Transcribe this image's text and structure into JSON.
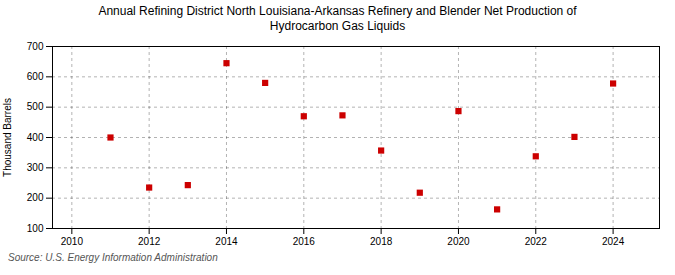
{
  "chart_data": {
    "type": "scatter",
    "title": "Annual Refining District North Louisiana-Arkansas Refinery and Blender Net Production of\nHydrocarbon Gas Liquids",
    "ylabel": "Thousand Barrels",
    "source": "Source: U.S. Energy Information Administration",
    "x": [
      2011,
      2012,
      2013,
      2014,
      2015,
      2016,
      2017,
      2018,
      2019,
      2020,
      2021,
      2022,
      2023,
      2024
    ],
    "values": [
      400,
      235,
      243,
      645,
      580,
      470,
      473,
      357,
      218,
      487,
      163,
      338,
      402,
      578
    ],
    "color": "#CC0000",
    "marker": "square",
    "xlim": [
      2009.5,
      2025.2
    ],
    "ylim": [
      100,
      700
    ],
    "xticks": [
      2010,
      2012,
      2014,
      2016,
      2018,
      2020,
      2022,
      2024
    ],
    "yticks": [
      100,
      200,
      300,
      400,
      500,
      600,
      700
    ],
    "grid": true
  }
}
